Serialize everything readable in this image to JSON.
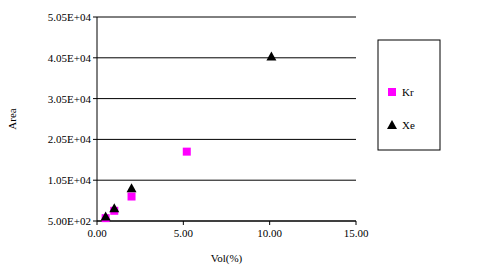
{
  "chart_data": {
    "type": "scatter",
    "x_label": "Vol(%)",
    "y_label": "Area",
    "xlim": [
      0,
      15
    ],
    "ylim": [
      500,
      50500
    ],
    "xticks": [
      {
        "value": 0,
        "label": "0.00"
      },
      {
        "value": 5,
        "label": "5.00"
      },
      {
        "value": 10,
        "label": "10.00"
      },
      {
        "value": 15,
        "label": "15.00"
      }
    ],
    "yticks": [
      {
        "value": 500,
        "label": "5.00E+02"
      },
      {
        "value": 10500,
        "label": "1.05E+04"
      },
      {
        "value": 20500,
        "label": "2.05E+04"
      },
      {
        "value": 30500,
        "label": "3.05E+04"
      },
      {
        "value": 40500,
        "label": "4.05E+04"
      },
      {
        "value": 50500,
        "label": "5.05E+04"
      }
    ],
    "grid": true,
    "legend": "right",
    "series": [
      {
        "name": "Kr",
        "color": "#ff00ff",
        "marker": "square",
        "x": [
          0.5,
          1.0,
          2.0,
          5.2
        ],
        "values": [
          1200,
          3000,
          6500,
          17500
        ]
      },
      {
        "name": "Xe",
        "color": "#000000",
        "marker": "triangle",
        "x": [
          0.5,
          1.0,
          2.0,
          10.1
        ],
        "values": [
          1600,
          3600,
          8500,
          40800
        ]
      }
    ]
  }
}
